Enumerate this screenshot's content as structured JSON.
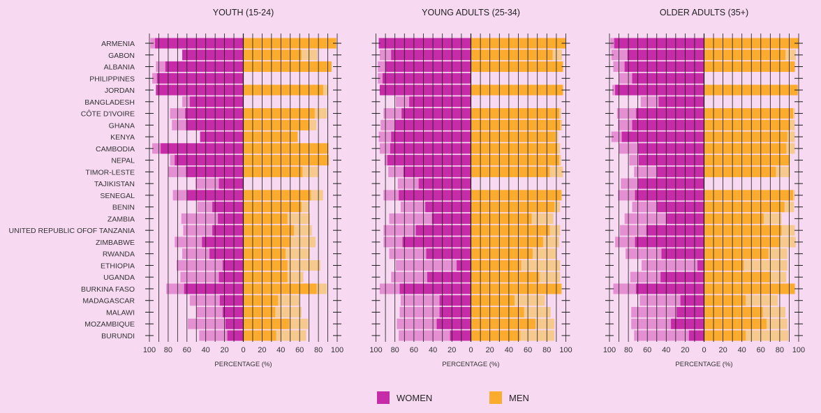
{
  "legend": {
    "women_label": "WOMEN",
    "men_label": "MEN"
  },
  "colors": {
    "background": "#f8d9f2",
    "women": "#c72ca8",
    "women_light": "#e58fd3",
    "men": "#fbab2e",
    "men_light": "#f6c98e",
    "grid": "#1a1a1a"
  },
  "chart_data": [
    {
      "type": "bar",
      "orientation": "horizontal-diverging",
      "title": "YOUTH (15-24)",
      "xlabel": "PERCENTAGE (%)",
      "xticks": [
        "100",
        "80",
        "60",
        "40",
        "20",
        "0",
        "20",
        "40",
        "60",
        "80",
        "100"
      ],
      "xlim": [
        -100,
        100
      ],
      "categories": [
        "ARMENIA",
        "GABON",
        "ALBANIA",
        "PHILIPPINES",
        "JORDAN",
        "BANGLADESH",
        "CÔTE D'IVOIRE",
        "GHANA",
        "KENYA",
        "CAMBODIA",
        "NEPAL",
        "TIMOR-LESTE",
        "TAJIKISTAN",
        "SENEGAL",
        "BENIN",
        "ZAMBIA",
        "UNITED REPUBLIC OFOF TANZANIA",
        "ZIMBABWE",
        "RWANDA",
        "ETHIOPIA",
        "UGANDA",
        "BURKINA FASO",
        "MADAGASCAR",
        "MALAWI",
        "MOZAMBIQUE",
        "BURUNDI"
      ],
      "series": [
        {
          "name": "WOMEN",
          "values": [
            94,
            65,
            83,
            92,
            93,
            57,
            62,
            61,
            46,
            88,
            73,
            61,
            26,
            60,
            33,
            27,
            33,
            44,
            36,
            22,
            26,
            63,
            25,
            22,
            19,
            17
          ]
        },
        {
          "name": "WOMEN (light)",
          "values": [
            99,
            65,
            93,
            97,
            93,
            65,
            78,
            76,
            46,
            97,
            78,
            80,
            51,
            75,
            49,
            66,
            64,
            73,
            65,
            71,
            67,
            82,
            57,
            50,
            59,
            47
          ]
        },
        {
          "name": "MEN",
          "values": [
            99,
            62,
            94,
            0,
            85,
            0,
            76,
            70,
            58,
            90,
            91,
            63,
            0,
            72,
            62,
            47,
            54,
            50,
            45,
            47,
            47,
            78,
            37,
            34,
            49,
            35
          ]
        },
        {
          "name": "MEN (light)",
          "values": [
            99,
            79,
            94,
            0,
            90,
            0,
            89,
            78,
            58,
            91,
            91,
            80,
            0,
            85,
            70,
            71,
            73,
            77,
            71,
            82,
            64,
            89,
            60,
            62,
            69,
            67
          ]
        }
      ]
    },
    {
      "type": "bar",
      "orientation": "horizontal-diverging",
      "title": "YOUNG ADULTS (25-34)",
      "xlabel": "PERCENTAGE (%)",
      "xticks": [
        "100",
        "80",
        "60",
        "40",
        "20",
        "0",
        "20",
        "40",
        "60",
        "80",
        "100"
      ],
      "xlim": [
        -100,
        100
      ],
      "categories": [
        "ARMENIA",
        "GABON",
        "ALBANIA",
        "PHILIPPINES",
        "JORDAN",
        "BANGLADESH",
        "CÔTE D'IVOIRE",
        "GHANA",
        "KENYA",
        "CAMBODIA",
        "NEPAL",
        "TIMOR-LESTE",
        "TAJIKISTAN",
        "SENEGAL",
        "BENIN",
        "ZAMBIA",
        "UNITED REPUBLIC OFOF TANZANIA",
        "ZIMBABWE",
        "RWANDA",
        "ETHIOPIA",
        "UGANDA",
        "BURKINA FASO",
        "MADAGASCAR",
        "MALAWI",
        "MOZAMBIQUE",
        "BURUNDI"
      ],
      "series": [
        {
          "name": "WOMEN",
          "values": [
            97,
            84,
            90,
            93,
            96,
            65,
            73,
            80,
            84,
            85,
            88,
            71,
            55,
            76,
            48,
            41,
            58,
            72,
            47,
            15,
            46,
            75,
            33,
            33,
            36,
            22
          ]
        },
        {
          "name": "WOMEN (light)",
          "values": [
            97,
            96,
            98,
            98,
            96,
            79,
            92,
            95,
            97,
            96,
            91,
            87,
            77,
            92,
            74,
            86,
            92,
            92,
            86,
            79,
            84,
            96,
            74,
            75,
            78,
            76
          ]
        },
        {
          "name": "MEN",
          "values": [
            100,
            86,
            97,
            0,
            97,
            0,
            93,
            94,
            89,
            91,
            93,
            83,
            0,
            95,
            88,
            64,
            83,
            76,
            65,
            53,
            72,
            95,
            46,
            56,
            68,
            52
          ]
        },
        {
          "name": "MEN (light)",
          "values": [
            100,
            96,
            97,
            0,
            97,
            0,
            95,
            96,
            92,
            94,
            95,
            97,
            0,
            96,
            94,
            87,
            94,
            93,
            90,
            94,
            94,
            96,
            78,
            84,
            88,
            88
          ]
        }
      ]
    },
    {
      "type": "bar",
      "orientation": "horizontal-diverging",
      "title": "OLDER ADULTS (35+)",
      "xlabel": "PERCENTAGE (%)",
      "xticks": [
        "100",
        "80",
        "60",
        "40",
        "20",
        "0",
        "20",
        "40",
        "60",
        "80",
        "100"
      ],
      "xlim": [
        -100,
        100
      ],
      "categories": [
        "ARMENIA",
        "GABON",
        "ALBANIA",
        "PHILIPPINES",
        "JORDAN",
        "BANGLADESH",
        "CÔTE D'IVOIRE",
        "GHANA",
        "KENYA",
        "CAMBODIA",
        "NEPAL",
        "TIMOR-LESTE",
        "TAJIKISTAN",
        "SENEGAL",
        "BENIN",
        "ZAMBIA",
        "UNITED REPUBLIC OFOF TANZANIA",
        "ZIMBABWE",
        "RWANDA",
        "ETHIOPIA",
        "UGANDA",
        "BURKINA FASO",
        "MADAGASCAR",
        "MALAWI",
        "MOZAMBIQUE",
        "BURUNDI"
      ],
      "series": [
        {
          "name": "WOMEN",
          "values": [
            95,
            81,
            84,
            76,
            94,
            48,
            72,
            76,
            87,
            70,
            69,
            50,
            70,
            73,
            50,
            40,
            61,
            73,
            45,
            7,
            46,
            72,
            25,
            29,
            35,
            16
          ]
        },
        {
          "name": "WOMEN (light)",
          "values": [
            99,
            98,
            96,
            90,
            97,
            67,
            92,
            91,
            98,
            90,
            79,
            74,
            88,
            91,
            76,
            84,
            89,
            94,
            83,
            66,
            78,
            96,
            68,
            77,
            77,
            74
          ]
        },
        {
          "name": "MEN",
          "values": [
            100,
            86,
            96,
            0,
            99,
            0,
            94,
            91,
            88,
            87,
            90,
            76,
            0,
            94,
            85,
            63,
            82,
            80,
            68,
            42,
            70,
            96,
            44,
            62,
            66,
            44
          ]
        },
        {
          "name": "MEN (light)",
          "values": [
            100,
            97,
            96,
            0,
            99,
            0,
            96,
            96,
            96,
            96,
            91,
            91,
            0,
            96,
            95,
            82,
            96,
            97,
            88,
            88,
            87,
            96,
            78,
            86,
            88,
            89
          ]
        }
      ]
    }
  ]
}
